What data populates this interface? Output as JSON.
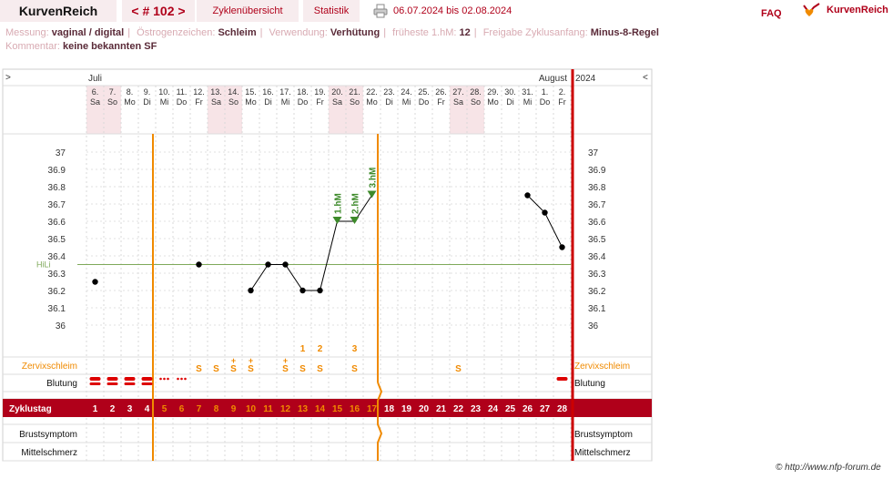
{
  "header": {
    "app_title": "KurvenReich",
    "cycle_nav": "< # 102 >",
    "tab_overview": "Zyklenübersicht",
    "tab_stats": "Statistik",
    "date_range": "06.07.2024 bis 02.08.2024",
    "faq": "FAQ",
    "logo_text": "KurvenReich"
  },
  "info": {
    "messung_label": "Messung:",
    "messung_value": "vaginal / digital",
    "oestrogen_label": "Östrogenzeichen:",
    "oestrogen_value": "Schleim",
    "verwendung_label": "Verwendung:",
    "verwendung_value": "Verhütung",
    "fruehestehm_label": "früheste 1.hM:",
    "fruehestehm_value": "12",
    "freigabe_label": "Freigabe Zyklusanfang:",
    "freigabe_value": "Minus-8-Regel",
    "kommentar_label": "Kommentar:",
    "kommentar_value": "keine bekannten SF"
  },
  "chart_data": {
    "type": "line",
    "month_left": "Juli",
    "month_right": "August",
    "year": "2024",
    "nav_left": ">",
    "nav_right": "<",
    "dates": [
      "6.",
      "7.",
      "8.",
      "9.",
      "10.",
      "11.",
      "12.",
      "13.",
      "14.",
      "15.",
      "16.",
      "17.",
      "18.",
      "19.",
      "20.",
      "21.",
      "22.",
      "23.",
      "24.",
      "25.",
      "26.",
      "27.",
      "28.",
      "29.",
      "30.",
      "31.",
      "1.",
      "2."
    ],
    "weekdays": [
      "Sa",
      "So",
      "Mo",
      "Di",
      "Mi",
      "Do",
      "Fr",
      "Sa",
      "So",
      "Mo",
      "Di",
      "Mi",
      "Do",
      "Fr",
      "Sa",
      "So",
      "Mo",
      "Di",
      "Mi",
      "Do",
      "Fr",
      "Sa",
      "So",
      "Mo",
      "Di",
      "Mi",
      "Do",
      "Fr"
    ],
    "cycle_days": [
      "1",
      "2",
      "3",
      "4",
      "5",
      "6",
      "7",
      "8",
      "9",
      "10",
      "11",
      "12",
      "13",
      "14",
      "15",
      "16",
      "17",
      "18",
      "19",
      "20",
      "21",
      "22",
      "23",
      "24",
      "25",
      "26",
      "27",
      "28"
    ],
    "temperatures": [
      36.25,
      null,
      null,
      null,
      null,
      null,
      36.35,
      null,
      null,
      36.2,
      36.35,
      36.35,
      36.2,
      36.2,
      36.6,
      36.6,
      36.75,
      null,
      null,
      null,
      null,
      null,
      null,
      null,
      null,
      36.75,
      36.65,
      36.45
    ],
    "high_measurements": [
      {
        "day": 15,
        "label": "1.hM"
      },
      {
        "day": 16,
        "label": "2.hM"
      },
      {
        "day": 17,
        "label": "3.hM"
      }
    ],
    "y_ticks": [
      "37",
      "36.9",
      "36.8",
      "36.7",
      "36.6",
      "36.5",
      "36.4",
      "36.3",
      "36.2",
      "36.1",
      "36"
    ],
    "ylim": [
      36.0,
      37.0
    ],
    "hili_label": "HiLi",
    "hili_value": 36.35,
    "cervix_label": "Zervixschleim",
    "cervix_marks": [
      "",
      "",
      "",
      "",
      "",
      "",
      "S",
      "S",
      "S+",
      "S+",
      "",
      "S+",
      "S",
      "S",
      "",
      "S",
      "",
      "",
      "",
      "",
      "",
      "S",
      "",
      "",
      "",
      "",
      "",
      ""
    ],
    "peak_counts": [
      "",
      "",
      "",
      "",
      "",
      "",
      "",
      "",
      "",
      "",
      "",
      "",
      "1",
      "2",
      "",
      "3",
      "",
      "",
      "",
      "",
      "",
      "",
      "",
      "",
      "",
      "",
      "",
      ""
    ],
    "bleeding_label": "Blutung",
    "bleeding": [
      "heavy",
      "heavy",
      "heavy",
      "heavy",
      "light",
      "light",
      "",
      "",
      "",
      "",
      "",
      "",
      "",
      "",
      "",
      "",
      "",
      "",
      "",
      "",
      "",
      "",
      "",
      "",
      "",
      "",
      "",
      "heavy"
    ],
    "cycleday_label": "Zyklustag",
    "chest_label": "Brustsymptom",
    "midcycle_label": "Mittelschmerz",
    "colors": {
      "accent": "#b0001a",
      "orange": "#f08a00",
      "green": "#3d8a2a",
      "line": "#000000",
      "weekend": "#f7e4e7"
    }
  },
  "footer": {
    "credit": "© http://www.nfp-forum.de"
  }
}
